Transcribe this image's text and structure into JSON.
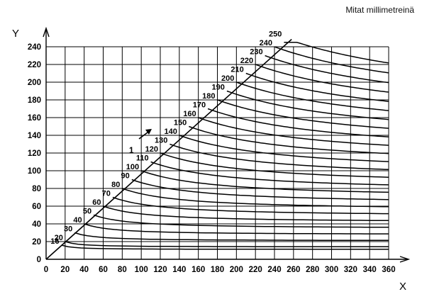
{
  "units_note": "Mitat millimetreinä",
  "axes": {
    "x_letter": "X",
    "y_letter": "Y",
    "x_ticks": [
      "0",
      "20",
      "40",
      "60",
      "80",
      "100",
      "120",
      "140",
      "160",
      "180",
      "200",
      "220",
      "240",
      "260",
      "280",
      "300",
      "320",
      "340",
      "360"
    ],
    "y_ticks": [
      "0",
      "20",
      "40",
      "60",
      "80",
      "100",
      "120",
      "140",
      "160",
      "180",
      "200",
      "220",
      "240"
    ]
  },
  "curve_labels": [
    "16",
    "20",
    "30",
    "40",
    "50",
    "60",
    "70",
    "80",
    "90",
    "100",
    "110",
    "120",
    "130",
    "140",
    "150",
    "160",
    "170",
    "180",
    "190",
    "200",
    "210",
    "220",
    "230",
    "240",
    "250"
  ],
  "curve_values": [
    16,
    20,
    30,
    40,
    50,
    60,
    70,
    80,
    90,
    100,
    110,
    120,
    130,
    140,
    150,
    160,
    170,
    180,
    190,
    200,
    210,
    220,
    230,
    240,
    250
  ],
  "reference_mark": "1",
  "chart_data": {
    "type": "line",
    "x_range": [
      0,
      360
    ],
    "y_range": [
      0,
      240
    ],
    "grid": true,
    "diagonal": "y = x boundary",
    "series_note": "one curve per value, starting on the diagonal and flattening to the right"
  }
}
